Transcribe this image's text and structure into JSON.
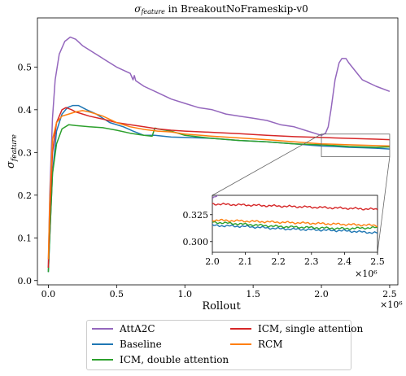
{
  "chart_data": {
    "type": "line",
    "title": "σ_feature in BreakoutNoFrameskip-v0",
    "title_main": "σ",
    "title_sub": "feature",
    "title_rest": " in BreakoutNoFrameskip-v0",
    "xlabel": "Rollout",
    "ylabel_main": "σ",
    "ylabel_sub": "feature",
    "x_multiplier": "×10⁶",
    "xlim": [
      -0.08,
      2.56
    ],
    "ylim": [
      -0.01,
      0.615
    ],
    "x_ticks": [
      "0.0",
      "0.5",
      "1.0",
      "1.5",
      "2.0",
      "2.5"
    ],
    "y_ticks": [
      "0.0",
      "0.1",
      "0.2",
      "0.3",
      "0.4",
      "0.5"
    ],
    "grid": false,
    "legend_position": "below",
    "series": [
      {
        "name": "AttA2C",
        "color": "#9467bd",
        "x": [
          0.0,
          0.01,
          0.03,
          0.05,
          0.08,
          0.12,
          0.16,
          0.2,
          0.25,
          0.3,
          0.4,
          0.5,
          0.6,
          0.62,
          0.63,
          0.64,
          0.7,
          0.8,
          0.9,
          1.0,
          1.1,
          1.2,
          1.3,
          1.4,
          1.5,
          1.6,
          1.7,
          1.8,
          1.9,
          2.0,
          2.03,
          2.05,
          2.07,
          2.1,
          2.13,
          2.15,
          2.18,
          2.2,
          2.25,
          2.3,
          2.4,
          2.5
        ],
        "y": [
          0.03,
          0.2,
          0.38,
          0.47,
          0.53,
          0.56,
          0.57,
          0.565,
          0.55,
          0.54,
          0.52,
          0.5,
          0.485,
          0.47,
          0.48,
          0.468,
          0.455,
          0.44,
          0.425,
          0.415,
          0.405,
          0.4,
          0.39,
          0.385,
          0.38,
          0.375,
          0.365,
          0.36,
          0.35,
          0.34,
          0.345,
          0.36,
          0.4,
          0.47,
          0.51,
          0.52,
          0.52,
          0.51,
          0.49,
          0.47,
          0.455,
          0.443
        ]
      },
      {
        "name": "Baseline",
        "color": "#1f77b4",
        "x": [
          0.0,
          0.01,
          0.03,
          0.06,
          0.1,
          0.14,
          0.18,
          0.22,
          0.28,
          0.35,
          0.45,
          0.55,
          0.62,
          0.7,
          0.78,
          0.9,
          1.0,
          1.2,
          1.4,
          1.6,
          1.8,
          2.0,
          2.1,
          2.2,
          2.3,
          2.4,
          2.5
        ],
        "y": [
          0.02,
          0.1,
          0.25,
          0.35,
          0.39,
          0.405,
          0.41,
          0.41,
          0.4,
          0.39,
          0.37,
          0.36,
          0.35,
          0.34,
          0.34,
          0.336,
          0.335,
          0.333,
          0.328,
          0.325,
          0.32,
          0.315,
          0.314,
          0.312,
          0.311,
          0.31,
          0.308
        ]
      },
      {
        "name": "ICM, double attention",
        "color": "#2ca02c",
        "x": [
          0.0,
          0.01,
          0.03,
          0.06,
          0.1,
          0.15,
          0.2,
          0.3,
          0.4,
          0.5,
          0.6,
          0.7,
          0.76,
          0.78,
          0.8,
          0.9,
          1.0,
          1.2,
          1.4,
          1.6,
          1.8,
          2.0,
          2.1,
          2.2,
          2.3,
          2.4,
          2.5
        ],
        "y": [
          0.02,
          0.1,
          0.25,
          0.32,
          0.355,
          0.365,
          0.363,
          0.36,
          0.358,
          0.352,
          0.345,
          0.34,
          0.338,
          0.357,
          0.355,
          0.35,
          0.34,
          0.333,
          0.328,
          0.325,
          0.32,
          0.318,
          0.316,
          0.314,
          0.313,
          0.312,
          0.313
        ]
      },
      {
        "name": "ICM, single attention",
        "color": "#d62728",
        "x": [
          0.0,
          0.01,
          0.03,
          0.06,
          0.1,
          0.13,
          0.17,
          0.2,
          0.3,
          0.4,
          0.5,
          0.6,
          0.7,
          0.8,
          0.9,
          1.0,
          1.2,
          1.4,
          1.6,
          1.8,
          2.0,
          2.1,
          2.2,
          2.3,
          2.4,
          2.5
        ],
        "y": [
          0.03,
          0.15,
          0.3,
          0.37,
          0.4,
          0.405,
          0.4,
          0.395,
          0.385,
          0.378,
          0.37,
          0.365,
          0.36,
          0.355,
          0.352,
          0.35,
          0.347,
          0.344,
          0.34,
          0.337,
          0.335,
          0.334,
          0.333,
          0.332,
          0.331,
          0.33
        ]
      },
      {
        "name": "RCM",
        "color": "#ff7f0e",
        "x": [
          0.0,
          0.01,
          0.03,
          0.06,
          0.1,
          0.15,
          0.2,
          0.25,
          0.3,
          0.4,
          0.5,
          0.6,
          0.7,
          0.8,
          0.9,
          1.0,
          1.2,
          1.4,
          1.6,
          1.8,
          2.0,
          2.1,
          2.2,
          2.3,
          2.4,
          2.5
        ],
        "y": [
          0.05,
          0.18,
          0.33,
          0.37,
          0.385,
          0.39,
          0.395,
          0.398,
          0.395,
          0.385,
          0.37,
          0.36,
          0.354,
          0.35,
          0.348,
          0.343,
          0.338,
          0.334,
          0.33,
          0.325,
          0.32,
          0.319,
          0.318,
          0.317,
          0.316,
          0.315
        ]
      }
    ],
    "inset": {
      "xlim": [
        2.0,
        2.5
      ],
      "ylim": [
        0.29,
        0.343
      ],
      "x_ticks": [
        "2.0",
        "2.1",
        "2.2",
        "2.3",
        "2.4",
        "2.5"
      ],
      "y_ticks": [
        "0.300",
        "0.325"
      ],
      "x_multiplier": "×10⁶"
    }
  }
}
